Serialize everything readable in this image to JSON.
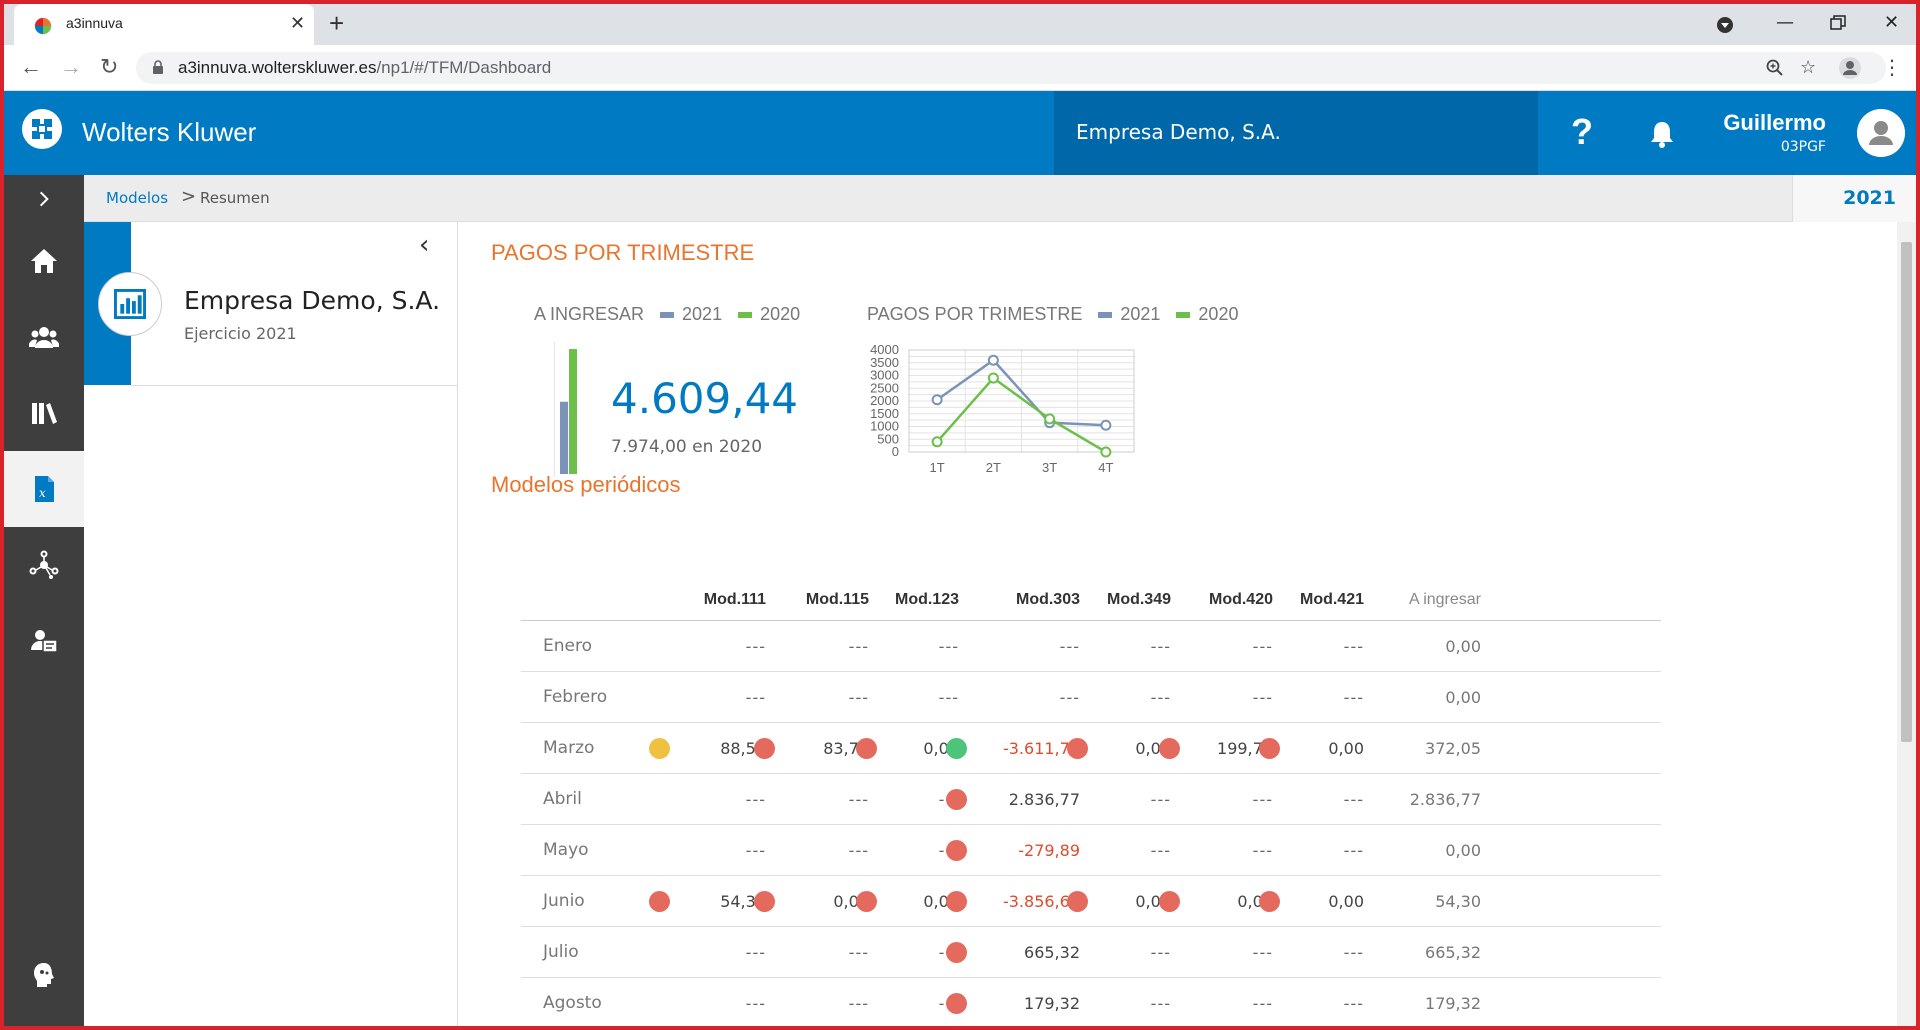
{
  "browser": {
    "tab_title": "a3innuva",
    "url_host": "a3innuva.wolterskluwer.es",
    "url_path": "/np1/#/TFM/Dashboard"
  },
  "header": {
    "brand": "Wolters Kluwer",
    "company": "Empresa Demo, S.A.",
    "help_label": "?",
    "user_name": "Guillermo",
    "user_code": "03PGF"
  },
  "breadcrumb": {
    "models": "Modelos",
    "separator": ">",
    "summary": "Resumen",
    "year": "2021"
  },
  "left_panel": {
    "company": "Empresa Demo, S.A.",
    "fiscal_year": "Ejercicio 2021"
  },
  "summary": {
    "section_title": "PAGOS POR TRIMESTRE",
    "a_ingresar_label": "A INGRESAR",
    "legend_2021": "2021",
    "legend_2020": "2020",
    "color_2021": "#7b93b8",
    "color_2020": "#6cc04a",
    "value_2021": "4.609,44",
    "value_2020_text": "7.974,00 en 2020",
    "bar_2021": 4609.44,
    "bar_2020": 7974.0
  },
  "chart_data": {
    "type": "line",
    "title": "PAGOS POR TRIMESTRE",
    "categories": [
      "1T",
      "2T",
      "3T",
      "4T"
    ],
    "y_ticks": [
      "4000",
      "3500",
      "3000",
      "2500",
      "2000",
      "1500",
      "1000",
      "500",
      "0"
    ],
    "ylim": [
      0,
      4000
    ],
    "grid": true,
    "series": [
      {
        "name": "2021",
        "color": "#7b93b8",
        "values": [
          2050,
          3600,
          1150,
          1050
        ]
      },
      {
        "name": "2020",
        "color": "#6cc04a",
        "values": [
          400,
          2900,
          1300,
          0
        ]
      }
    ]
  },
  "periodic": {
    "title": "Modelos periódicos",
    "headers": [
      "Mod.111",
      "Mod.115",
      "Mod.123",
      "Mod.303",
      "Mod.349",
      "Mod.420",
      "Mod.421",
      "A ingresar"
    ],
    "status_colors": {
      "yellow": "#f0c040",
      "red": "#e46a5e",
      "green": "#4cc47a"
    },
    "rows": [
      {
        "month": "Enero",
        "cells": [
          {
            "v": "---"
          },
          {
            "v": "---"
          },
          {
            "v": "---"
          },
          {
            "v": "---"
          },
          {
            "v": "---"
          },
          {
            "v": "---"
          },
          {
            "v": "---"
          }
        ],
        "total": "0,00"
      },
      {
        "month": "Febrero",
        "cells": [
          {
            "v": "---"
          },
          {
            "v": "---"
          },
          {
            "v": "---"
          },
          {
            "v": "---"
          },
          {
            "v": "---"
          },
          {
            "v": "---"
          },
          {
            "v": "---"
          }
        ],
        "total": "0,00"
      },
      {
        "month": "Marzo",
        "cells": [
          {
            "v": "88,50",
            "s": "yellow"
          },
          {
            "v": "83,79",
            "s": "red"
          },
          {
            "v": "0,00",
            "s": "red"
          },
          {
            "v": "-3.611,77",
            "s": "green",
            "neg": true
          },
          {
            "v": "0,00",
            "s": "red"
          },
          {
            "v": "199,76",
            "s": "red"
          },
          {
            "v": "0,00",
            "s": "red"
          }
        ],
        "total": "372,05"
      },
      {
        "month": "Abril",
        "cells": [
          {
            "v": "---"
          },
          {
            "v": "---"
          },
          {
            "v": "---"
          },
          {
            "v": "2.836,77",
            "s": "red"
          },
          {
            "v": "---"
          },
          {
            "v": "---"
          },
          {
            "v": "---"
          }
        ],
        "total": "2.836,77"
      },
      {
        "month": "Mayo",
        "cells": [
          {
            "v": "---"
          },
          {
            "v": "---"
          },
          {
            "v": "---"
          },
          {
            "v": "-279,89",
            "s": "red",
            "neg": true
          },
          {
            "v": "---"
          },
          {
            "v": "---"
          },
          {
            "v": "---"
          }
        ],
        "total": "0,00"
      },
      {
        "month": "Junio",
        "cells": [
          {
            "v": "54,30",
            "s": "red"
          },
          {
            "v": "0,00",
            "s": "red"
          },
          {
            "v": "0,00",
            "s": "red"
          },
          {
            "v": "-3.856,63",
            "s": "red",
            "neg": true
          },
          {
            "v": "0,00",
            "s": "red"
          },
          {
            "v": "0,00",
            "s": "red"
          },
          {
            "v": "0,00",
            "s": "red"
          }
        ],
        "total": "54,30"
      },
      {
        "month": "Julio",
        "cells": [
          {
            "v": "---"
          },
          {
            "v": "---"
          },
          {
            "v": "---"
          },
          {
            "v": "665,32",
            "s": "red"
          },
          {
            "v": "---"
          },
          {
            "v": "---"
          },
          {
            "v": "---"
          }
        ],
        "total": "665,32"
      },
      {
        "month": "Agosto",
        "cells": [
          {
            "v": "---"
          },
          {
            "v": "---"
          },
          {
            "v": "---"
          },
          {
            "v": "179,32",
            "s": "red"
          },
          {
            "v": "---"
          },
          {
            "v": "---"
          },
          {
            "v": "---"
          }
        ],
        "total": "179,32"
      }
    ]
  }
}
